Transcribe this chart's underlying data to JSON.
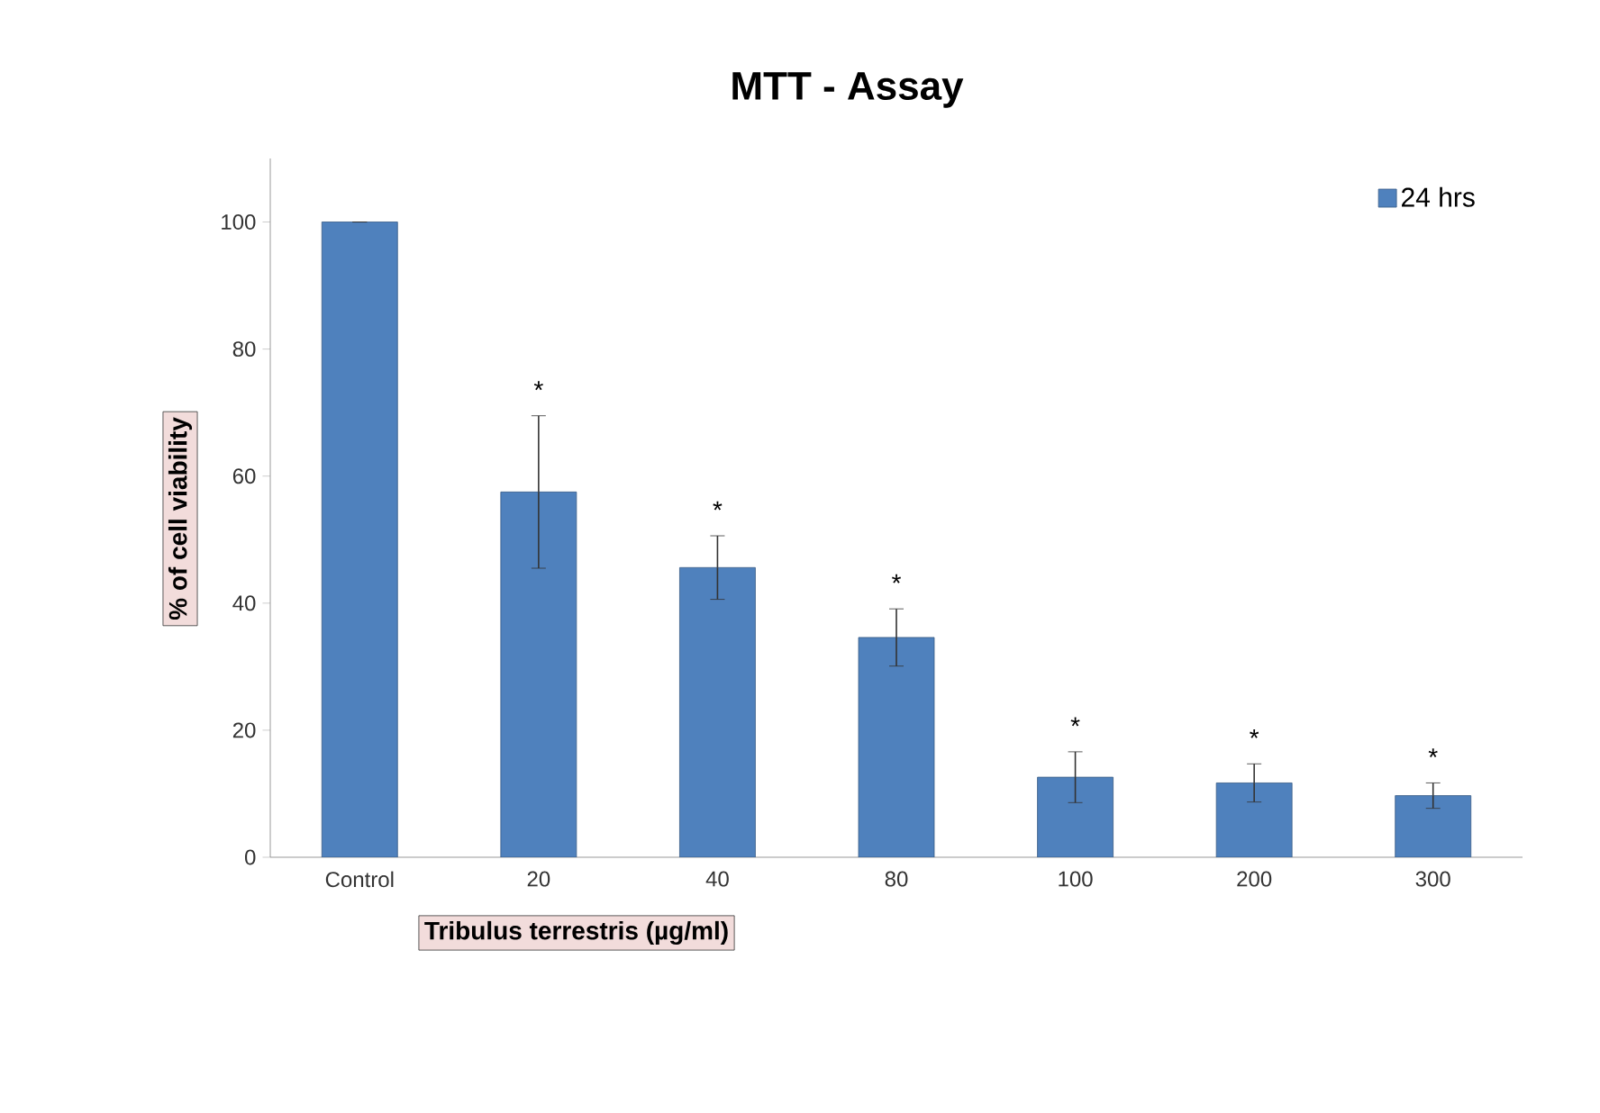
{
  "chart_data": {
    "type": "bar",
    "title": "MTT - Assay",
    "xlabel": "Tribulus terrestris (µg/ml)",
    "ylabel": "% of cell viability",
    "categories": [
      "Control",
      "20",
      "40",
      "80",
      "100",
      "200",
      "300"
    ],
    "series": [
      {
        "name": "24 hrs",
        "color": "#4f81bd",
        "values": [
          100,
          57.5,
          45.6,
          34.6,
          12.6,
          11.7,
          9.7
        ],
        "errors": [
          null,
          12,
          5,
          4.5,
          4,
          3,
          2
        ]
      }
    ],
    "ylim": [
      0,
      110
    ],
    "yticks": [
      0,
      20,
      40,
      60,
      80,
      100
    ],
    "grid": false,
    "legend": "top right",
    "annotations": [
      "*",
      "*",
      "*",
      "*",
      "*",
      "*"
    ]
  }
}
